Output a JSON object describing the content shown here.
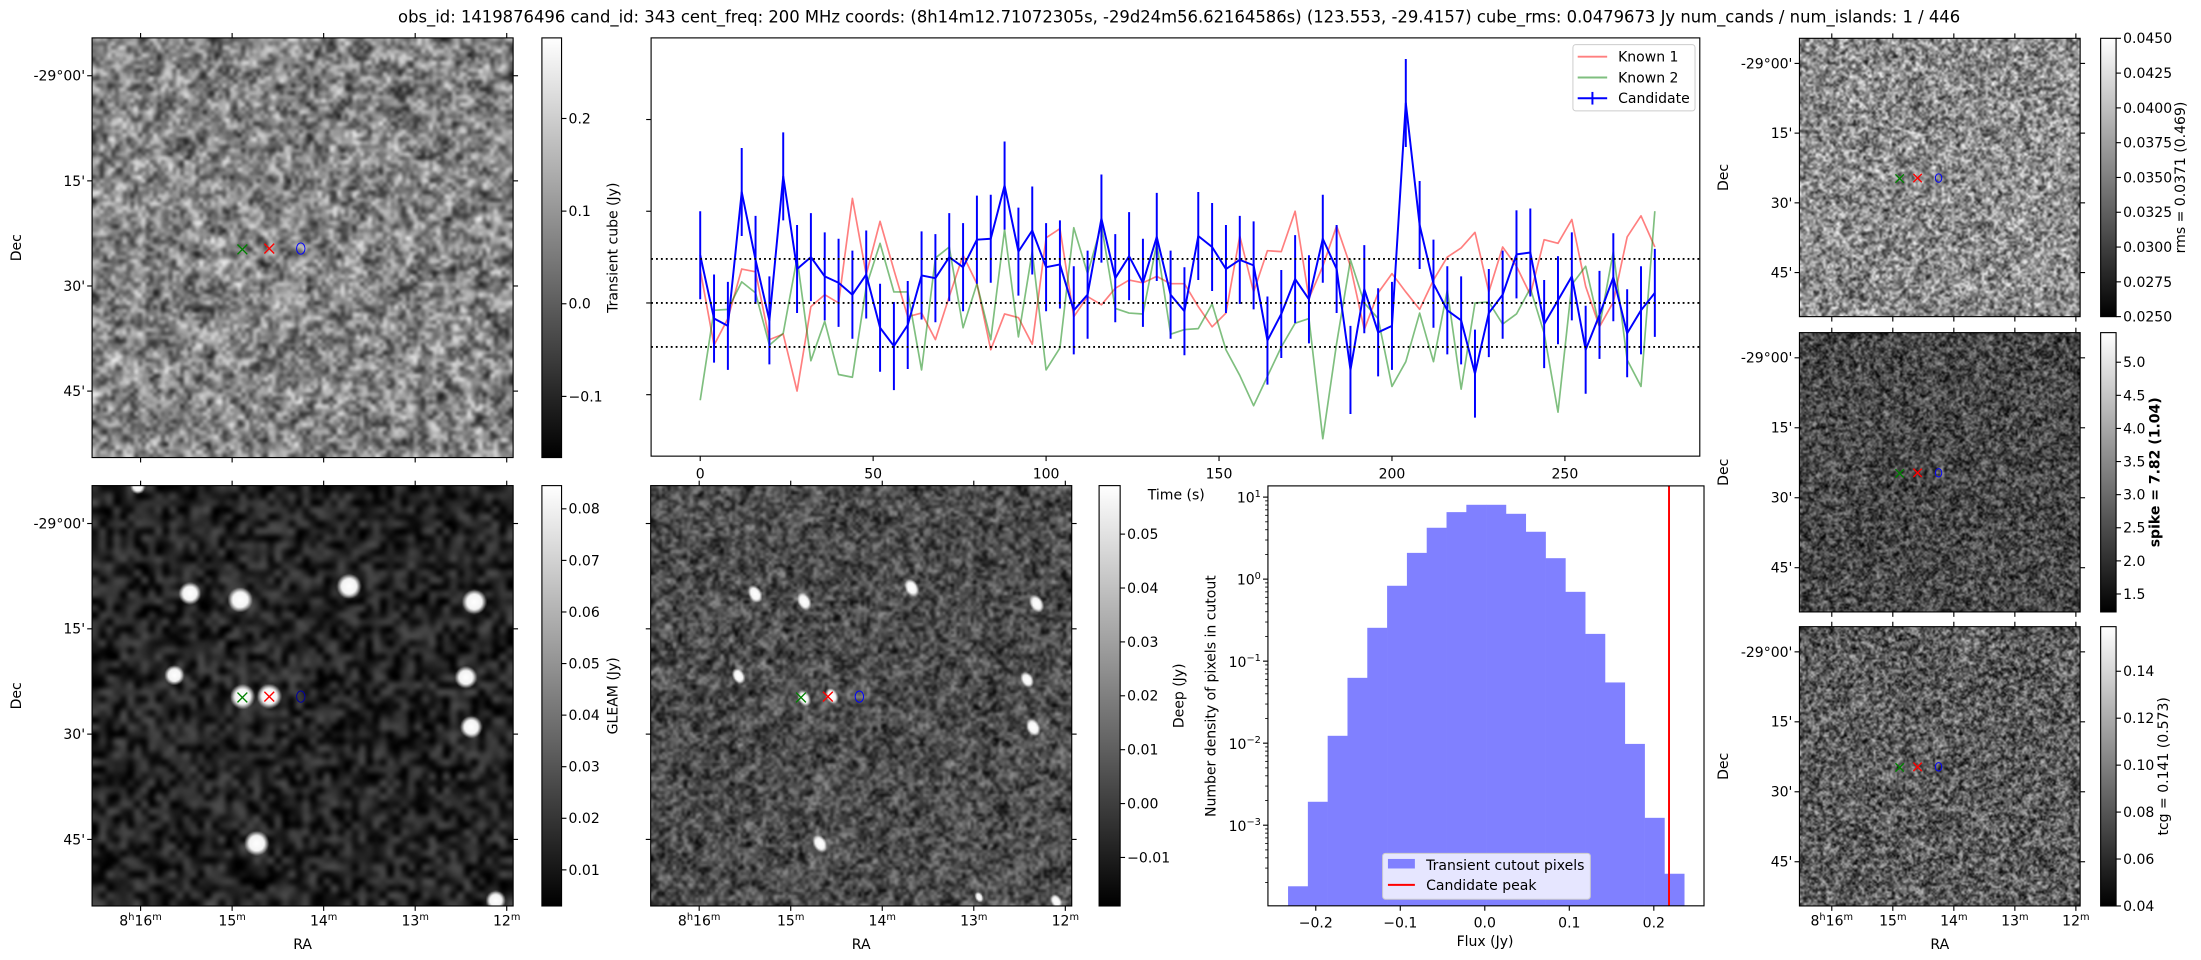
{
  "title": "obs_id: 1419876496 cand_id: 343 cent_freq: 200 MHz coords: (8h14m12.71072305s, -29d24m56.62164586s) (123.553, -29.4157) cube_rms: 0.0479673 Jy num_cands / num_islands: 1 / 446",
  "sky": {
    "ra_label": "RA",
    "dec_label": "Dec",
    "ra_range_min": [
      16.53,
      11.93
    ],
    "dec_range_deg": [
      -28.91,
      -29.908
    ],
    "ra_ticks": [
      {
        "value": 16,
        "label": "8h16m"
      },
      {
        "value": 15,
        "label": "15m"
      },
      {
        "value": 14,
        "label": "14m"
      },
      {
        "value": 13,
        "label": "13m"
      },
      {
        "value": 12,
        "label": "12m"
      }
    ],
    "dec_ticks": [
      {
        "value": -29.0,
        "label": "-29°00'"
      },
      {
        "value": -29.25,
        "label": "15'"
      },
      {
        "value": -29.5,
        "label": "30'"
      },
      {
        "value": -29.75,
        "label": "45'"
      }
    ],
    "markers": [
      {
        "name": "known-2-marker",
        "ra": 14.888,
        "dec": -29.413,
        "shape": "x",
        "color": "#008000"
      },
      {
        "name": "known-1-marker",
        "ra": 14.594,
        "dec": -29.411,
        "shape": "x",
        "color": "#ff0000"
      },
      {
        "name": "candidate-contour",
        "ra": 14.25,
        "dec": -29.411,
        "shape": "contour",
        "color": "#0000ff"
      }
    ]
  },
  "panels": [
    {
      "id": "transient",
      "colorbar_label": "Transient cube (Jy)",
      "bold": false,
      "vmin": -0.166,
      "vmax": 0.287,
      "ticks": [
        -0.1,
        0.0,
        0.1,
        0.2
      ],
      "tick_labels": [
        "−0.1",
        "0.0",
        "0.1",
        "0.2"
      ],
      "show_ra": false,
      "show_dec": true,
      "sources": []
    },
    {
      "id": "gleam",
      "colorbar_label": "GLEAM (Jy)",
      "bold": false,
      "vmin": 0.003,
      "vmax": 0.0845,
      "ticks": [
        0.01,
        0.02,
        0.03,
        0.04,
        0.05,
        0.06,
        0.07,
        0.08
      ],
      "tick_labels": [
        "0.01",
        "0.02",
        "0.03",
        "0.04",
        "0.05",
        "0.06",
        "0.07",
        "0.08"
      ],
      "show_ra": true,
      "show_dec": true,
      "sources": [
        {
          "ra": 15.462,
          "dec": -29.166,
          "peak": 0.9
        },
        {
          "ra": 14.912,
          "dec": -29.181,
          "peak": 1.0
        },
        {
          "ra": 13.723,
          "dec": -29.149,
          "peak": 1.0
        },
        {
          "ra": 12.354,
          "dec": -29.186,
          "peak": 1.0
        },
        {
          "ra": 15.631,
          "dec": -29.36,
          "peak": 0.8
        },
        {
          "ra": 12.446,
          "dec": -29.365,
          "peak": 0.9
        },
        {
          "ra": 14.886,
          "dec": -29.411,
          "peak": 1.0
        },
        {
          "ra": 14.594,
          "dec": -29.41,
          "peak": 1.0
        },
        {
          "ra": 12.388,
          "dec": -29.483,
          "peak": 0.9
        },
        {
          "ra": 14.732,
          "dec": -29.759,
          "peak": 1.0
        },
        {
          "ra": 16.03,
          "dec": -28.912,
          "peak": 0.6
        },
        {
          "ra": 12.12,
          "dec": -29.895,
          "peak": 0.8
        }
      ]
    },
    {
      "id": "deep",
      "colorbar_label": "Deep (Jy)",
      "bold": false,
      "vmin": -0.019,
      "vmax": 0.059,
      "ticks": [
        -0.01,
        0.0,
        0.01,
        0.02,
        0.03,
        0.04,
        0.05
      ],
      "tick_labels": [
        "−0.01",
        "0.00",
        "0.01",
        "0.02",
        "0.03",
        "0.04",
        "0.05"
      ],
      "show_ra": true,
      "show_dec": false,
      "sources": [
        {
          "ra": 15.39,
          "dec": -29.167,
          "peak": 1.0
        },
        {
          "ra": 14.853,
          "dec": -29.185,
          "peak": 1.0
        },
        {
          "ra": 13.678,
          "dec": -29.153,
          "peak": 1.0
        },
        {
          "ra": 12.314,
          "dec": -29.19,
          "peak": 1.0
        },
        {
          "ra": 15.57,
          "dec": -29.362,
          "peak": 0.9
        },
        {
          "ra": 14.853,
          "dec": -29.415,
          "peak": 0.9
        },
        {
          "ra": 14.551,
          "dec": -29.409,
          "peak": 0.9
        },
        {
          "ra": 12.417,
          "dec": -29.371,
          "peak": 0.9
        },
        {
          "ra": 12.351,
          "dec": -29.484,
          "peak": 1.0
        },
        {
          "ra": 14.681,
          "dec": -29.76,
          "peak": 1.0
        },
        {
          "ra": 12.1,
          "dec": -29.897,
          "peak": 0.8
        },
        {
          "ra": 12.943,
          "dec": -29.887,
          "peak": 0.6
        }
      ]
    },
    {
      "id": "rms",
      "colorbar_label": "rms = 0.0371 (0.469)",
      "bold": false,
      "vmin": 0.025,
      "vmax": 0.045,
      "ticks": [
        0.025,
        0.0275,
        0.03,
        0.0325,
        0.035,
        0.0375,
        0.04,
        0.0425,
        0.045
      ],
      "tick_labels": [
        "0.0250",
        "0.0275",
        "0.0300",
        "0.0325",
        "0.0350",
        "0.0375",
        "0.0400",
        "0.0425",
        "0.0450"
      ],
      "show_ra": false,
      "show_dec": true,
      "sources": []
    },
    {
      "id": "spike",
      "colorbar_label": "spike = 7.82 (1.04)",
      "bold": true,
      "vmin": 1.229,
      "vmax": 5.447,
      "ticks": [
        1.5,
        2.0,
        2.5,
        3.0,
        3.5,
        4.0,
        4.5,
        5.0
      ],
      "tick_labels": [
        "1.5",
        "2.0",
        "2.5",
        "3.0",
        "3.5",
        "4.0",
        "4.5",
        "5.0"
      ],
      "show_ra": false,
      "show_dec": true,
      "sources": []
    },
    {
      "id": "tcg",
      "colorbar_label": "tcg = 0.141 (0.573)",
      "bold": false,
      "vmin": 0.04,
      "vmax": 0.159,
      "ticks": [
        0.04,
        0.06,
        0.08,
        0.1,
        0.12,
        0.14
      ],
      "tick_labels": [
        "0.04",
        "0.06",
        "0.08",
        "0.10",
        "0.12",
        "0.14"
      ],
      "show_ra": true,
      "show_dec": true,
      "sources": []
    }
  ],
  "chart_data": [
    {
      "type": "line",
      "title": "",
      "xlabel": "Time (s)",
      "ylabel": "",
      "xlim": [
        -14.2,
        289
      ],
      "ylim": [
        -0.167,
        0.289
      ],
      "x_start": 0,
      "x_step": 4,
      "xticks": [
        0,
        50,
        100,
        150,
        200,
        250
      ],
      "xtick_labels": [
        "0",
        "50",
        "100",
        "150",
        "200",
        "250"
      ],
      "yticks": [
        -0.1,
        0.0,
        0.1,
        0.2
      ],
      "hlines": [
        -0.0479673,
        0.0,
        0.0479673
      ],
      "legend": "top-right",
      "series": [
        {
          "name": "Known 1",
          "color": "#ff0000",
          "opacity": 0.5,
          "values": [
            0.036,
            -0.046,
            -0.017,
            0.037,
            0.034,
            -0.04,
            -0.034,
            -0.096,
            -0.004,
            0.009,
            0.0,
            0.114,
            0.031,
            0.089,
            0.036,
            -0.015,
            -0.011,
            -0.04,
            0.007,
            0.052,
            0.021,
            -0.051,
            -0.012,
            -0.016,
            -0.045,
            0.071,
            0.081,
            -0.015,
            0.007,
            -0.002,
            0.016,
            0.025,
            0.022,
            0.029,
            0.021,
            0.021,
            -0.004,
            -0.026,
            -0.011,
            0.073,
            0.012,
            0.057,
            0.056,
            0.1,
            0.005,
            0.04,
            0.084,
            0.04,
            -0.029,
            0.011,
            0.032,
            0.012,
            -0.007,
            0.025,
            0.05,
            0.06,
            0.077,
            0.012,
            0.061,
            0.04,
            0.009,
            0.069,
            0.065,
            0.091,
            0.018,
            -0.026,
            0.001,
            0.072,
            0.095,
            0.061
          ]
        },
        {
          "name": "Known 2",
          "color": "#008000",
          "opacity": 0.5,
          "values": [
            -0.106,
            -0.008,
            -0.007,
            0.023,
            0.011,
            -0.046,
            -0.033,
            0.049,
            -0.063,
            -0.02,
            -0.078,
            -0.081,
            0.018,
            0.065,
            0.012,
            0.012,
            -0.073,
            0.049,
            0.061,
            -0.027,
            0.021,
            -0.04,
            0.08,
            -0.037,
            0.056,
            -0.073,
            -0.049,
            0.082,
            0.032,
            0.085,
            -0.006,
            -0.011,
            -0.012,
            0.065,
            -0.034,
            -0.029,
            -0.028,
            -0.001,
            -0.051,
            -0.079,
            -0.112,
            -0.08,
            -0.048,
            -0.022,
            -0.017,
            -0.148,
            -0.044,
            0.047,
            0.0,
            -0.017,
            -0.091,
            -0.064,
            -0.011,
            -0.064,
            0.014,
            -0.094,
            0.0,
            0.001,
            -0.023,
            -0.012,
            0.016,
            -0.033,
            -0.119,
            0.02,
            0.04,
            -0.026,
            0.056,
            -0.062,
            -0.091,
            0.1
          ]
        },
        {
          "name": "Candidate",
          "color": "#0000ff",
          "opacity": 1,
          "yerr": 0.048,
          "values": [
            0.052,
            -0.017,
            -0.025,
            0.121,
            0.047,
            -0.019,
            0.138,
            0.037,
            0.05,
            0.029,
            0.022,
            0.009,
            0.031,
            -0.027,
            -0.047,
            -0.024,
            0.03,
            0.027,
            0.05,
            0.039,
            0.069,
            0.07,
            0.128,
            0.056,
            0.079,
            0.039,
            0.042,
            -0.008,
            0.009,
            0.092,
            0.027,
            0.051,
            0.022,
            0.072,
            0.009,
            -0.009,
            0.073,
            0.061,
            0.037,
            0.047,
            0.041,
            -0.041,
            -0.012,
            0.026,
            0.004,
            0.07,
            0.037,
            -0.073,
            0.015,
            -0.032,
            -0.025,
            0.218,
            0.085,
            0.021,
            -0.008,
            -0.019,
            -0.077,
            -0.011,
            0.009,
            0.053,
            0.055,
            -0.023,
            0.003,
            0.029,
            -0.051,
            -0.013,
            0.028,
            -0.033,
            -0.008,
            0.011
          ]
        }
      ]
    },
    {
      "type": "bar",
      "title": "",
      "xlabel": "Flux (Jy)",
      "ylabel": "Number density of pixels in cutout",
      "xlim": [
        -0.2566,
        0.2594
      ],
      "ylim": [
        0.000104,
        13.7
      ],
      "yscale": "log",
      "bin_start": -0.2328,
      "bin_width": 0.02344,
      "values": [
        0.00018,
        0.00193,
        0.0123,
        0.0626,
        0.255,
        0.83,
        2.09,
        4.23,
        6.56,
        8.06,
        8.06,
        6.26,
        3.78,
        1.8,
        0.7,
        0.215,
        0.055,
        0.0098,
        0.00123,
        0.000256
      ],
      "bar_color": "#8080ff",
      "xticks": [
        -0.2,
        -0.1,
        0.0,
        0.1,
        0.2
      ],
      "xtick_labels": [
        "−0.2",
        "−0.1",
        "0.0",
        "0.1",
        "0.2"
      ],
      "yticks_exp": [
        1,
        0,
        -1,
        -2,
        -3
      ],
      "candidate_peak": 0.218,
      "candidate_peak_color": "#ff0000",
      "legend": "bottom-center",
      "legend_entries": [
        "Transient cutout pixels",
        "Candidate peak"
      ]
    }
  ]
}
